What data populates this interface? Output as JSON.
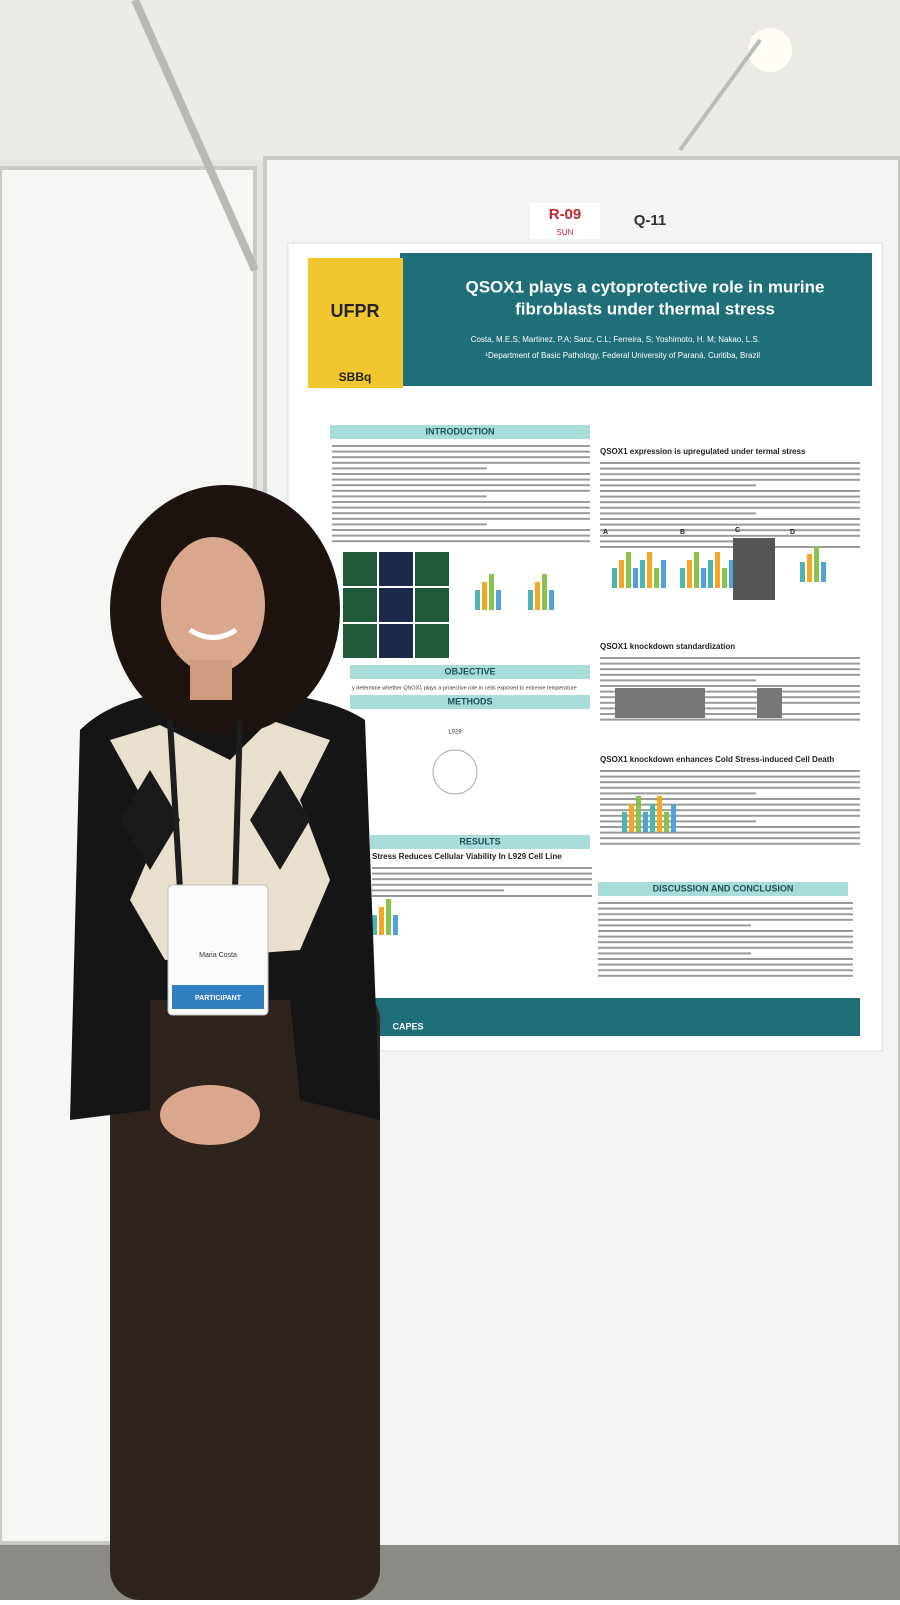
{
  "board": {
    "labels": [
      "R-09",
      "SUN",
      "Q-11"
    ]
  },
  "poster": {
    "title_lines": [
      "QSOX1 plays a cytoprotective role in murine",
      "fibroblasts under thermal stress"
    ],
    "authors": "Costa, M.E.S; Martinez, P.A; Sanz, C.L; Ferreira, S; Yoshimoto, H. M; Nakao, L.S.",
    "affiliation": "¹Department of Basic Pathology, Federal University of Paraná, Curitiba, Brazil",
    "logos": [
      "UFPR",
      "SBBq",
      "CAPES"
    ],
    "sections": [
      "INTRODUCTION",
      "OBJECTIVE",
      "METHODS",
      "RESULTS",
      "DISCUSSION AND CONCLUSION"
    ],
    "objective": "y determine whether QSOX1 plays a protective role in cells exposed to extreme temperature",
    "subsections": [
      "QSOX1 expression is upregulated  under termal stress",
      "QSOX1 knockdown standardization",
      "QSOX1 knockdown enhances Cold Stress-induced Cell Death",
      "Stress Reduces Cellular Viability In L929 Cell Line"
    ],
    "panel_letters": [
      "A",
      "B",
      "C",
      "D"
    ],
    "methods_label": "L929"
  },
  "badge": {
    "name": "Maria Costa",
    "role": "PARTICIPANT"
  }
}
